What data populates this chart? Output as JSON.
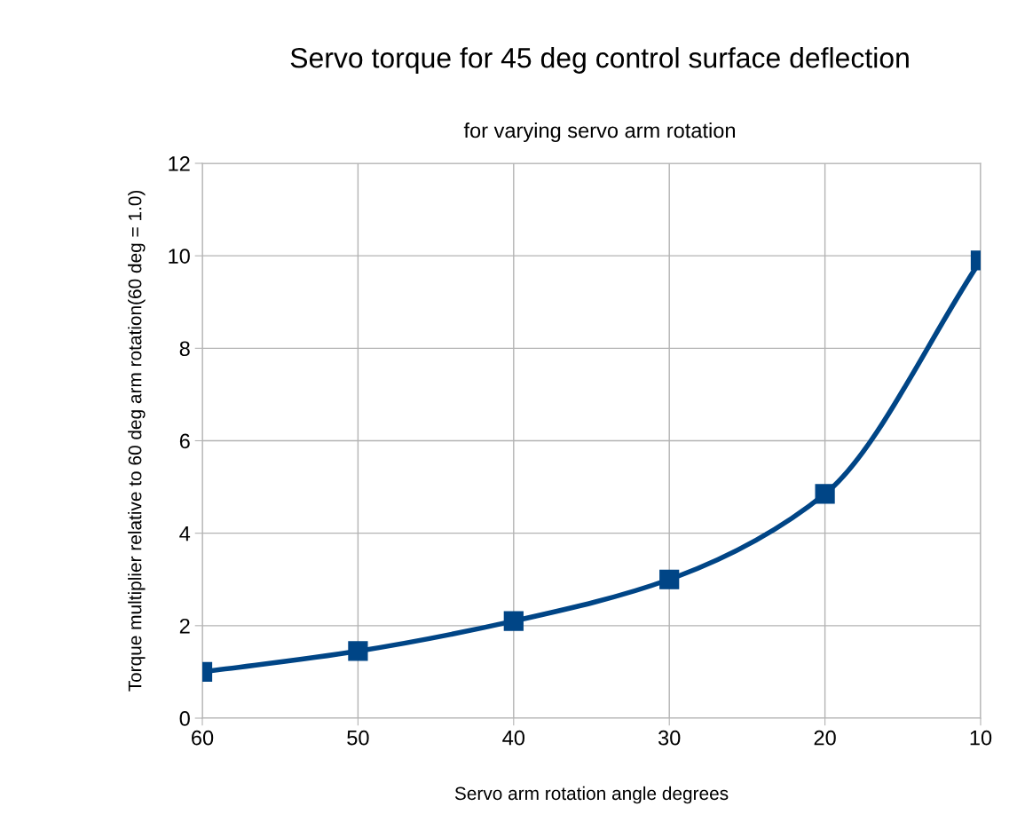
{
  "chart_data": {
    "type": "line",
    "title": "Servo torque for 45 deg control surface deflection",
    "subtitle": "for varying servo arm rotation",
    "xlabel": "Servo arm rotation angle degrees",
    "ylabel": "Torque multiplier relative to 60 deg arm rotation(60 deg = 1.0)",
    "categories": [
      "60",
      "50",
      "40",
      "30",
      "20",
      "10"
    ],
    "series": [
      {
        "color": "#004586",
        "values": [
          1.0,
          1.45,
          2.1,
          3.0,
          4.85,
          9.9
        ]
      }
    ],
    "ylim": [
      0,
      12
    ],
    "yticks": [
      0,
      2,
      4,
      6,
      8,
      10,
      12
    ],
    "grid": true,
    "marker": "square",
    "line_style": "solid"
  }
}
